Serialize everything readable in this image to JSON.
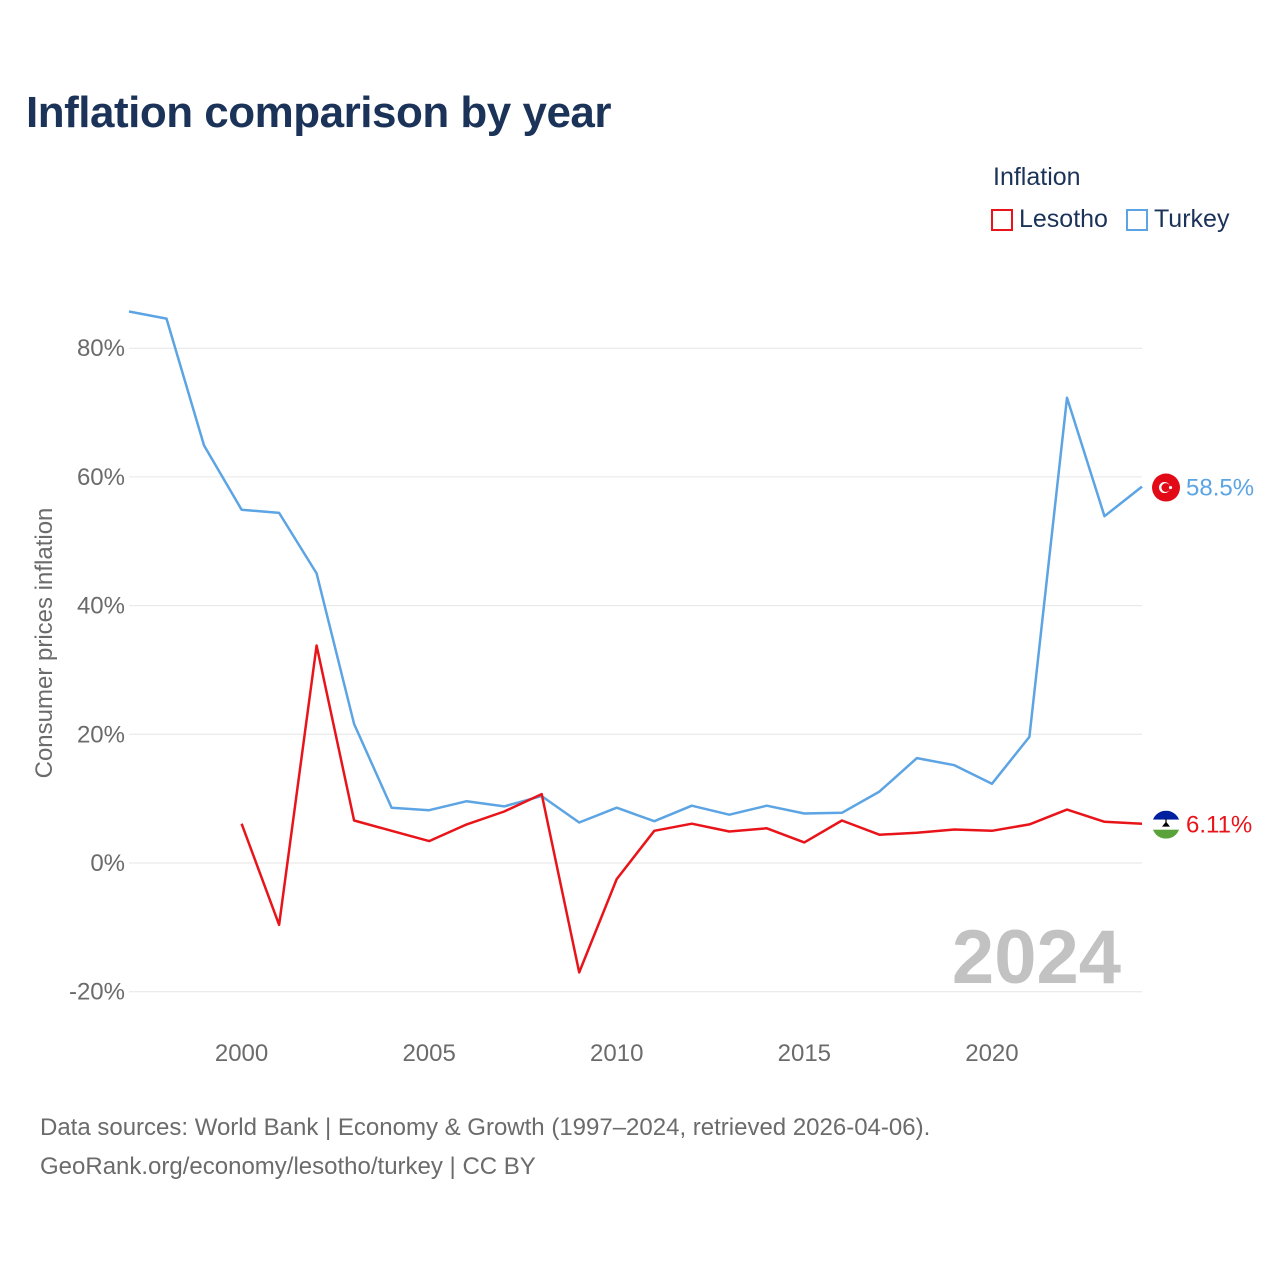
{
  "chart_data": {
    "type": "line",
    "title": "Inflation comparison by year",
    "legend_title": "Inflation",
    "ylabel": "Consumer prices inflation",
    "xlabel": "",
    "xlim": [
      1997,
      2024
    ],
    "ylim": [
      -25,
      90
    ],
    "x_ticks": [
      2000,
      2005,
      2010,
      2015,
      2020
    ],
    "y_ticks": [
      -20,
      0,
      20,
      40,
      60,
      80
    ],
    "y_tick_labels": [
      "-20%",
      "0%",
      "20%",
      "40%",
      "60%",
      "80%"
    ],
    "year_watermark": "2024",
    "series": [
      {
        "name": "Turkey",
        "color": "#5ca4e3",
        "end_label": "58.5%",
        "flag": "turkey-flag",
        "x": [
          1997,
          1998,
          1999,
          2000,
          2001,
          2002,
          2003,
          2004,
          2005,
          2006,
          2007,
          2008,
          2009,
          2010,
          2011,
          2012,
          2013,
          2014,
          2015,
          2016,
          2017,
          2018,
          2019,
          2020,
          2021,
          2022,
          2023,
          2024
        ],
        "values": [
          85.7,
          84.6,
          64.9,
          54.9,
          54.4,
          45.0,
          21.6,
          8.6,
          8.2,
          9.6,
          8.8,
          10.4,
          6.3,
          8.6,
          6.5,
          8.9,
          7.5,
          8.9,
          7.7,
          7.8,
          11.1,
          16.3,
          15.2,
          12.3,
          19.6,
          72.3,
          53.9,
          58.5
        ]
      },
      {
        "name": "Lesotho",
        "color": "#e8141a",
        "end_label": "6.11%",
        "flag": "lesotho-flag",
        "x": [
          2000,
          2001,
          2002,
          2003,
          2004,
          2005,
          2006,
          2007,
          2008,
          2009,
          2010,
          2011,
          2012,
          2013,
          2014,
          2015,
          2016,
          2017,
          2018,
          2019,
          2020,
          2021,
          2022,
          2023,
          2024
        ],
        "values": [
          6.1,
          -9.6,
          33.8,
          6.6,
          5.0,
          3.4,
          6.0,
          8.0,
          10.7,
          -17.0,
          -2.5,
          5.0,
          6.1,
          4.9,
          5.4,
          3.2,
          6.6,
          4.4,
          4.7,
          5.2,
          5.0,
          6.0,
          8.3,
          6.4,
          6.11
        ]
      }
    ]
  },
  "legend": {
    "items": [
      {
        "label": "Lesotho",
        "color": "#e8141a"
      },
      {
        "label": "Turkey",
        "color": "#5ca4e3"
      }
    ]
  },
  "footer": {
    "sources": "Data sources: World Bank | Economy & Growth (1997–2024, retrieved 2026-04-06).",
    "url": "GeoRank.org/economy/lesotho/turkey | CC BY"
  }
}
